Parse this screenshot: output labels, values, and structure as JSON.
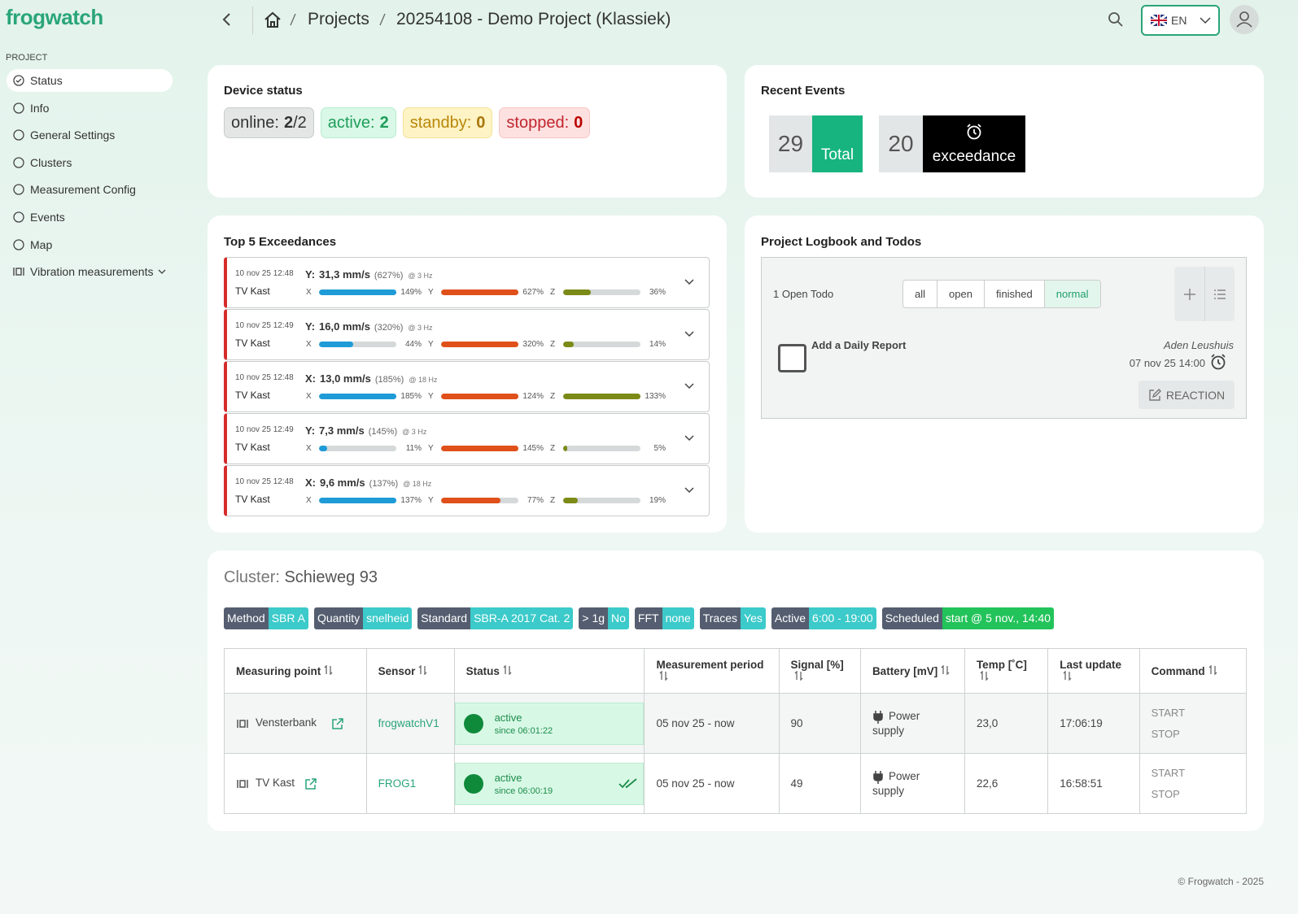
{
  "header": {
    "logo": "frogwatch",
    "breadcrumb": [
      "Projects",
      "20254108 - Demo Project (Klassiek)"
    ],
    "language": "EN"
  },
  "sidebar": {
    "section": "PROJECT",
    "items": [
      "Status",
      "Info",
      "General Settings",
      "Clusters",
      "Measurement Config",
      "Events",
      "Map",
      "Vibration measurements"
    ]
  },
  "device_status": {
    "title": "Device status",
    "badges": [
      {
        "label": "online:",
        "value": 2,
        "suffix": "/2"
      },
      {
        "label": "active:",
        "value": 2
      },
      {
        "label": "standby:",
        "value": 0
      },
      {
        "label": "stopped:",
        "value": 0
      }
    ]
  },
  "recent_events": {
    "title": "Recent Events",
    "total": {
      "count": 29,
      "label": "Total"
    },
    "exceedance": {
      "count": 20,
      "label": "exceedance"
    }
  },
  "top_exceedances": {
    "title": "Top 5 Exceedances",
    "rows": [
      {
        "date": "10 nov 25 12:48",
        "location": "TV Kast",
        "axis": "Y:",
        "value": "31,3 mm/s",
        "pct": "(627%)",
        "freq": "@ 3 Hz",
        "bars": [
          {
            "axis": "X",
            "value": 149,
            "label": "149%"
          },
          {
            "axis": "Y",
            "value": 627,
            "label": "627%"
          },
          {
            "axis": "Z",
            "value": 36,
            "label": "36%"
          }
        ]
      },
      {
        "date": "10 nov 25 12:49",
        "location": "TV Kast",
        "axis": "Y:",
        "value": "16,0 mm/s",
        "pct": "(320%)",
        "freq": "@ 3 Hz",
        "bars": [
          {
            "axis": "X",
            "value": 44,
            "label": "44%"
          },
          {
            "axis": "Y",
            "value": 320,
            "label": "320%"
          },
          {
            "axis": "Z",
            "value": 14,
            "label": "14%"
          }
        ]
      },
      {
        "date": "10 nov 25 12:48",
        "location": "TV Kast",
        "axis": "X:",
        "value": "13,0 mm/s",
        "pct": "(185%)",
        "freq": "@ 18 Hz",
        "bars": [
          {
            "axis": "X",
            "value": 185,
            "label": "185%"
          },
          {
            "axis": "Y",
            "value": 124,
            "label": "124%"
          },
          {
            "axis": "Z",
            "value": 133,
            "label": "133%"
          }
        ]
      },
      {
        "date": "10 nov 25 12:49",
        "location": "TV Kast",
        "axis": "Y:",
        "value": "7,3 mm/s",
        "pct": "(145%)",
        "freq": "@ 3 Hz",
        "bars": [
          {
            "axis": "X",
            "value": 11,
            "label": "11%"
          },
          {
            "axis": "Y",
            "value": 145,
            "label": "145%"
          },
          {
            "axis": "Z",
            "value": 5,
            "label": "5%"
          }
        ]
      },
      {
        "date": "10 nov 25 12:48",
        "location": "TV Kast",
        "axis": "X:",
        "value": "9,6 mm/s",
        "pct": "(137%)",
        "freq": "@ 18 Hz",
        "bars": [
          {
            "axis": "X",
            "value": 137,
            "label": "137%"
          },
          {
            "axis": "Y",
            "value": 77,
            "label": "77%"
          },
          {
            "axis": "Z",
            "value": 19,
            "label": "19%"
          }
        ]
      }
    ]
  },
  "logbook": {
    "title": "Project Logbook and Todos",
    "open": "1 Open Todo",
    "filters": [
      "all",
      "open",
      "finished",
      "normal"
    ],
    "todo": {
      "text": "Add a Daily Report",
      "author": "Aden Leushuis",
      "date": "07 nov 25 14:00",
      "button": "REACTION"
    }
  },
  "cluster": {
    "label": "Cluster:",
    "name": "Schieweg 93",
    "tags": [
      {
        "key": "Method",
        "value": "SBR A"
      },
      {
        "key": "Quantity",
        "value": "snelheid"
      },
      {
        "key": "Standard",
        "value": "SBR-A 2017 Cat. 2"
      },
      {
        "key": "> 1g",
        "value": "No"
      },
      {
        "key": "FFT",
        "value": "none"
      },
      {
        "key": "Traces",
        "value": "Yes"
      },
      {
        "key": "Active",
        "value": "6:00 - 19:00"
      },
      {
        "key": "Scheduled",
        "value": "start @ 5 nov., 14:40"
      }
    ],
    "table": {
      "headers": [
        "Measuring point",
        "Sensor",
        "Status",
        "Measurement period",
        "Signal [%]",
        "Battery [mV]",
        "Temp [˚C]",
        "Last update",
        "Command"
      ],
      "rows": [
        {
          "point": "Vensterbank",
          "sensor": "frogwatchV1",
          "status": "active",
          "since": "since 06:01:22",
          "period": "05 nov 25 - now",
          "signal": 90,
          "battery": "Power supply",
          "temp": "23,0",
          "updated": "17:06:19",
          "start": "START",
          "stop": "STOP"
        },
        {
          "point": "TV Kast",
          "sensor": "FROG1",
          "status": "active",
          "since": "since 06:00:19",
          "period": "05 nov 25 - now",
          "signal": 49,
          "battery": "Power supply",
          "temp": "22,6",
          "updated": "16:58:51",
          "start": "START",
          "stop": "STOP"
        }
      ]
    }
  },
  "footer": "© Frogwatch - 2025"
}
